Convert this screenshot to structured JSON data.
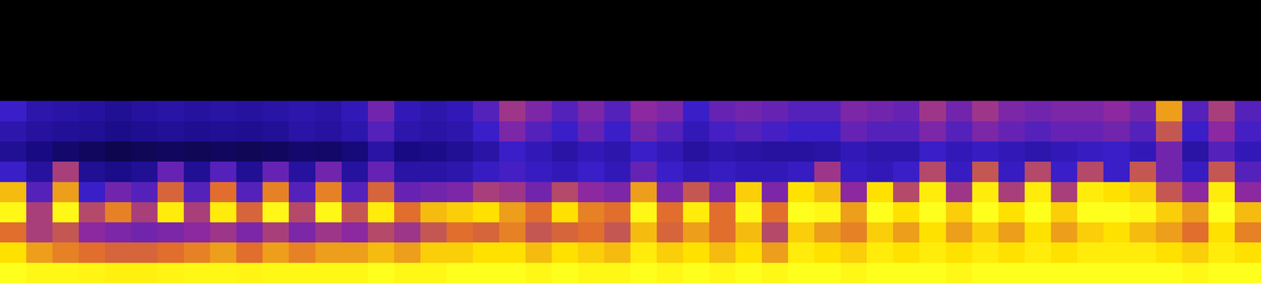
{
  "chart_data": {
    "type": "heatmap",
    "tick_labels": false,
    "zlim": [
      0,
      100
    ],
    "cells": [
      [
        0,
        0,
        0,
        0,
        0,
        0,
        0,
        0,
        0,
        0,
        0,
        0,
        0,
        0,
        0,
        0,
        0,
        0,
        0,
        0,
        0,
        0,
        0,
        0,
        0,
        0,
        0,
        0,
        0,
        0,
        0,
        0,
        0,
        0,
        0,
        0,
        0,
        0,
        0,
        0,
        0,
        0,
        0,
        0,
        0,
        0,
        0,
        0
      ],
      [
        0,
        0,
        0,
        0,
        0,
        0,
        0,
        0,
        0,
        0,
        0,
        0,
        0,
        0,
        0,
        0,
        0,
        0,
        0,
        0,
        0,
        0,
        0,
        0,
        0,
        0,
        0,
        0,
        0,
        0,
        0,
        0,
        0,
        0,
        0,
        0,
        0,
        0,
        0,
        0,
        0,
        0,
        0,
        0,
        0,
        0,
        0,
        0
      ],
      [
        0,
        0,
        0,
        0,
        0,
        0,
        0,
        0,
        0,
        0,
        0,
        0,
        0,
        0,
        0,
        0,
        0,
        0,
        0,
        0,
        0,
        0,
        0,
        0,
        0,
        0,
        0,
        0,
        0,
        0,
        0,
        0,
        0,
        0,
        0,
        0,
        0,
        0,
        0,
        0,
        0,
        0,
        0,
        0,
        0,
        0,
        0,
        0
      ],
      [
        0,
        0,
        0,
        0,
        0,
        0,
        0,
        0,
        0,
        0,
        0,
        0,
        0,
        0,
        0,
        0,
        0,
        0,
        0,
        0,
        0,
        0,
        0,
        0,
        0,
        0,
        0,
        0,
        0,
        0,
        0,
        0,
        0,
        0,
        0,
        0,
        0,
        0,
        0,
        0,
        0,
        0,
        0,
        0,
        0,
        0,
        0,
        0
      ],
      [
        0,
        0,
        0,
        0,
        0,
        0,
        0,
        0,
        0,
        0,
        0,
        0,
        0,
        0,
        0,
        0,
        0,
        0,
        0,
        0,
        0,
        0,
        0,
        0,
        0,
        0,
        0,
        0,
        0,
        0,
        0,
        0,
        0,
        0,
        0,
        0,
        0,
        0,
        0,
        0,
        0,
        0,
        0,
        0,
        0,
        0,
        0,
        0
      ],
      [
        50,
        42,
        40,
        38,
        35,
        38,
        40,
        38,
        40,
        38,
        40,
        42,
        40,
        45,
        60,
        45,
        42,
        45,
        55,
        68,
        62,
        55,
        62,
        55,
        65,
        62,
        50,
        58,
        60,
        58,
        55,
        55,
        62,
        60,
        58,
        68,
        60,
        68,
        62,
        60,
        62,
        62,
        65,
        60,
        85,
        55,
        70,
        55
      ],
      [
        42,
        38,
        36,
        35,
        32,
        34,
        36,
        34,
        35,
        34,
        36,
        40,
        38,
        42,
        55,
        42,
        40,
        42,
        50,
        62,
        55,
        50,
        58,
        50,
        60,
        55,
        45,
        52,
        55,
        52,
        50,
        50,
        58,
        55,
        55,
        62,
        55,
        62,
        58,
        55,
        58,
        58,
        60,
        55,
        75,
        50,
        65,
        52
      ],
      [
        35,
        30,
        25,
        22,
        18,
        20,
        22,
        20,
        22,
        20,
        22,
        25,
        24,
        28,
        40,
        30,
        32,
        35,
        40,
        50,
        45,
        40,
        45,
        42,
        50,
        45,
        38,
        42,
        40,
        38,
        38,
        40,
        45,
        42,
        42,
        50,
        45,
        48,
        45,
        42,
        45,
        48,
        50,
        45,
        60,
        40,
        55,
        45
      ],
      [
        50,
        38,
        70,
        35,
        32,
        35,
        58,
        35,
        55,
        35,
        58,
        38,
        60,
        38,
        58,
        40,
        40,
        42,
        48,
        52,
        48,
        45,
        50,
        45,
        58,
        50,
        45,
        48,
        45,
        45,
        48,
        68,
        48,
        45,
        50,
        72,
        48,
        75,
        48,
        72,
        50,
        72,
        50,
        75,
        60,
        48,
        75,
        55
      ],
      [
        88,
        55,
        85,
        50,
        60,
        55,
        78,
        55,
        80,
        55,
        82,
        55,
        82,
        55,
        78,
        58,
        60,
        62,
        70,
        68,
        60,
        72,
        65,
        62,
        85,
        62,
        75,
        62,
        90,
        62,
        92,
        88,
        65,
        92,
        72,
        95,
        68,
        95,
        70,
        95,
        70,
        95,
        92,
        90,
        75,
        65,
        95,
        65
      ],
      [
        98,
        70,
        98,
        72,
        82,
        70,
        95,
        70,
        95,
        78,
        98,
        72,
        98,
        75,
        95,
        80,
        88,
        90,
        92,
        85,
        80,
        92,
        82,
        80,
        98,
        80,
        95,
        80,
        98,
        80,
        100,
        98,
        85,
        100,
        92,
        100,
        90,
        100,
        92,
        100,
        90,
        100,
        100,
        98,
        90,
        85,
        100,
        88
      ],
      [
        80,
        70,
        75,
        65,
        62,
        60,
        62,
        65,
        68,
        62,
        70,
        62,
        68,
        65,
        72,
        68,
        75,
        80,
        78,
        82,
        75,
        78,
        80,
        75,
        88,
        78,
        85,
        80,
        88,
        72,
        90,
        85,
        82,
        90,
        85,
        92,
        85,
        90,
        85,
        92,
        85,
        90,
        92,
        88,
        85,
        80,
        92,
        82
      ],
      [
        92,
        85,
        82,
        80,
        78,
        78,
        80,
        82,
        85,
        80,
        85,
        82,
        85,
        85,
        88,
        85,
        90,
        90,
        92,
        92,
        88,
        92,
        90,
        88,
        95,
        90,
        92,
        88,
        92,
        85,
        95,
        92,
        90,
        95,
        92,
        95,
        92,
        95,
        92,
        95,
        92,
        95,
        95,
        95,
        92,
        90,
        95,
        92
      ],
      [
        100,
        98,
        98,
        97,
        96,
        96,
        97,
        98,
        98,
        97,
        98,
        98,
        98,
        98,
        100,
        98,
        98,
        100,
        100,
        100,
        98,
        100,
        98,
        98,
        100,
        98,
        100,
        98,
        100,
        98,
        100,
        100,
        98,
        100,
        100,
        100,
        98,
        100,
        100,
        100,
        100,
        100,
        100,
        100,
        100,
        98,
        100,
        100
      ]
    ]
  }
}
